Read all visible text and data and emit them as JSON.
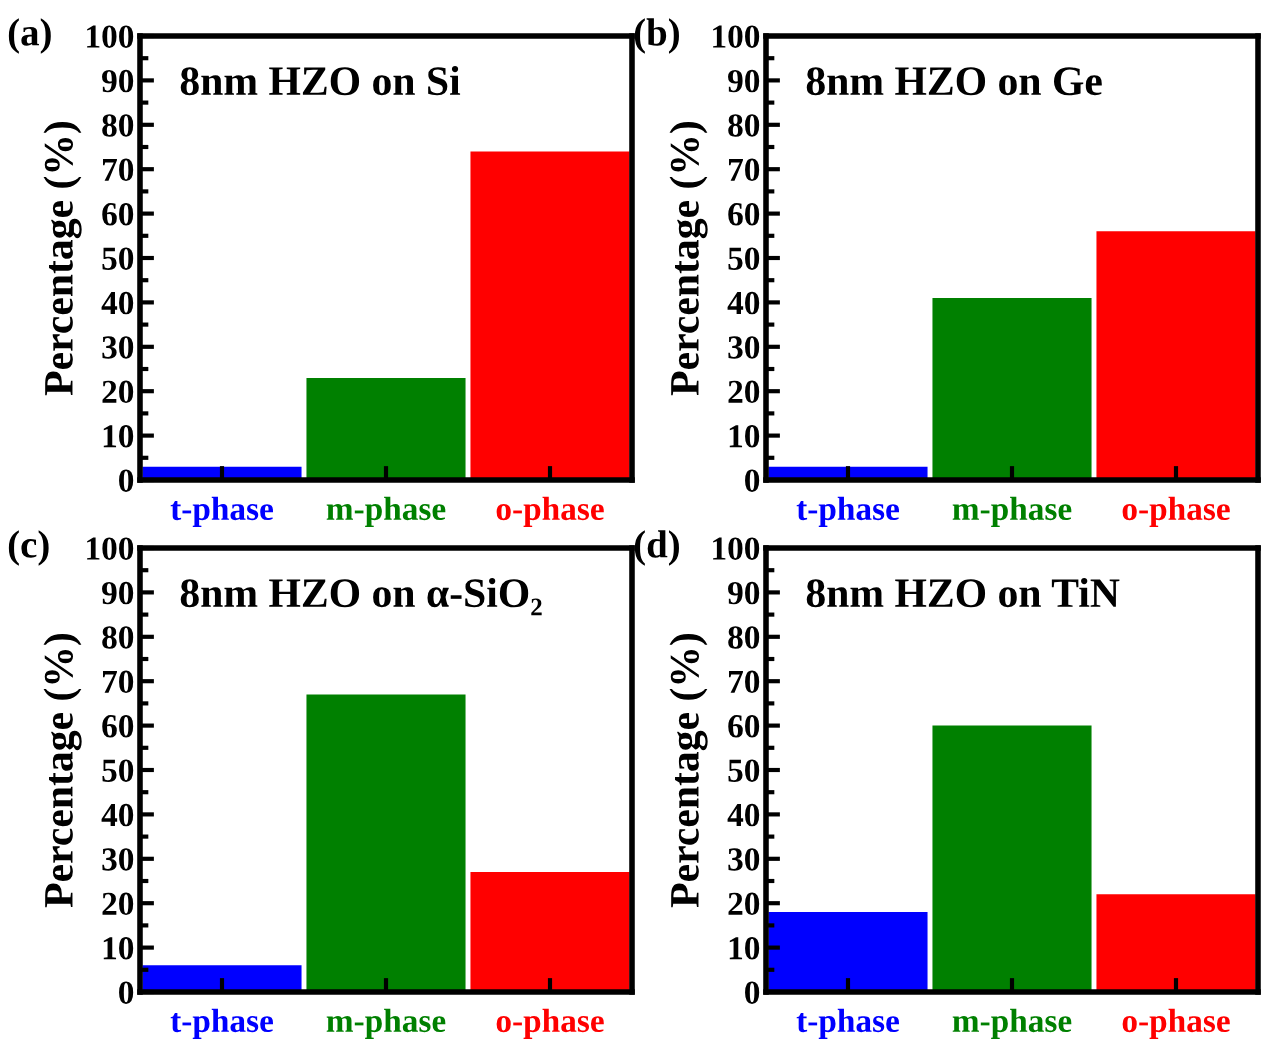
{
  "chart_data": [
    {
      "type": "bar",
      "title": "8nm HZO on Si",
      "ylabel": "Percentage (%)",
      "annotations": [
        "(a)"
      ],
      "categories": [
        "t-phase",
        "m-phase",
        "o-phase"
      ],
      "values": [
        3,
        23,
        74
      ],
      "colors": [
        "#0000ff",
        "#008000",
        "#ff0000"
      ],
      "ylim": [
        0,
        100
      ],
      "yticks": [
        0,
        10,
        20,
        30,
        40,
        50,
        60,
        70,
        80,
        90,
        100
      ],
      "grid": false,
      "legend": false
    },
    {
      "type": "bar",
      "title": "8nm HZO on Ge",
      "ylabel": "Percentage (%)",
      "annotations": [
        "(b)"
      ],
      "categories": [
        "t-phase",
        "m-phase",
        "o-phase"
      ],
      "values": [
        3,
        41,
        56
      ],
      "colors": [
        "#0000ff",
        "#008000",
        "#ff0000"
      ],
      "ylim": [
        0,
        100
      ],
      "yticks": [
        0,
        10,
        20,
        30,
        40,
        50,
        60,
        70,
        80,
        90,
        100
      ],
      "grid": false,
      "legend": false
    },
    {
      "type": "bar",
      "title": "8nm HZO on α-SiO₂",
      "ylabel": "Percentage (%)",
      "annotations": [
        "(c)"
      ],
      "categories": [
        "t-phase",
        "m-phase",
        "o-phase"
      ],
      "values": [
        6,
        67,
        27
      ],
      "colors": [
        "#0000ff",
        "#008000",
        "#ff0000"
      ],
      "ylim": [
        0,
        100
      ],
      "yticks": [
        0,
        10,
        20,
        30,
        40,
        50,
        60,
        70,
        80,
        90,
        100
      ],
      "grid": false,
      "legend": false
    },
    {
      "type": "bar",
      "title": "8nm HZO on TiN",
      "ylabel": "Percentage (%)",
      "annotations": [
        "(d)"
      ],
      "categories": [
        "t-phase",
        "m-phase",
        "o-phase"
      ],
      "values": [
        18,
        60,
        22
      ],
      "colors": [
        "#0000ff",
        "#008000",
        "#ff0000"
      ],
      "ylim": [
        0,
        100
      ],
      "yticks": [
        0,
        10,
        20,
        30,
        40,
        50,
        60,
        70,
        80,
        90,
        100
      ],
      "grid": false,
      "legend": false
    }
  ]
}
